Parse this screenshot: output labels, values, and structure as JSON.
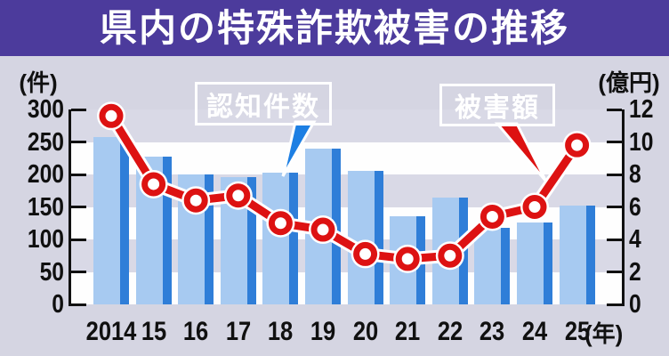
{
  "title": "県内の特殊詐欺被害の推移",
  "chart_data": {
    "type": "bar",
    "subtype": "bar+line combo",
    "title": "県内の特殊詐欺被害の推移",
    "categories": [
      "2014",
      "15",
      "16",
      "17",
      "18",
      "19",
      "20",
      "21",
      "22",
      "23",
      "24",
      "25"
    ],
    "x_axis_suffix": "(年)",
    "series": [
      {
        "name": "認知件数",
        "type": "bar",
        "axis": "left",
        "unit": "件",
        "values": [
          258,
          228,
          200,
          196,
          203,
          240,
          205,
          135,
          164,
          118,
          126,
          152
        ]
      },
      {
        "name": "被害額",
        "type": "line",
        "axis": "right",
        "unit": "億円",
        "values": [
          11.6,
          7.4,
          6.4,
          6.7,
          5.0,
          4.6,
          3.1,
          2.8,
          3.0,
          5.4,
          6.0,
          9.8
        ]
      }
    ],
    "left_axis": {
      "unit_label": "(件)",
      "min": 0,
      "max": 300,
      "tick_step": 50,
      "tick_labels": [
        "300",
        "250",
        "200",
        "150",
        "100",
        "50",
        "0"
      ]
    },
    "right_axis": {
      "unit_label": "(億円)",
      "min": 0,
      "max": 12,
      "tick_step": 2,
      "tick_labels": [
        "12",
        "10",
        "8",
        "6",
        "4",
        "2",
        "0"
      ]
    },
    "legend": [
      {
        "label": "認知件数",
        "color": "#1d7fe3"
      },
      {
        "label": "被害額",
        "color": "#dd1111"
      }
    ],
    "grid": "alternating horizontal bands every 50件 / 2億円",
    "legend_position": "inside-top callout boxes"
  },
  "colors": {
    "title_bg": "#4c3b9c",
    "title_text": "#ffffff",
    "page_bg": "#d5d5e2",
    "band_lavender": "#d9d9e6",
    "band_white": "#fefefe",
    "bar_fill": "#a7caf1",
    "bar_edge": "#2f7ed8",
    "line_red": "#dd1212",
    "axis_black": "#111111"
  }
}
